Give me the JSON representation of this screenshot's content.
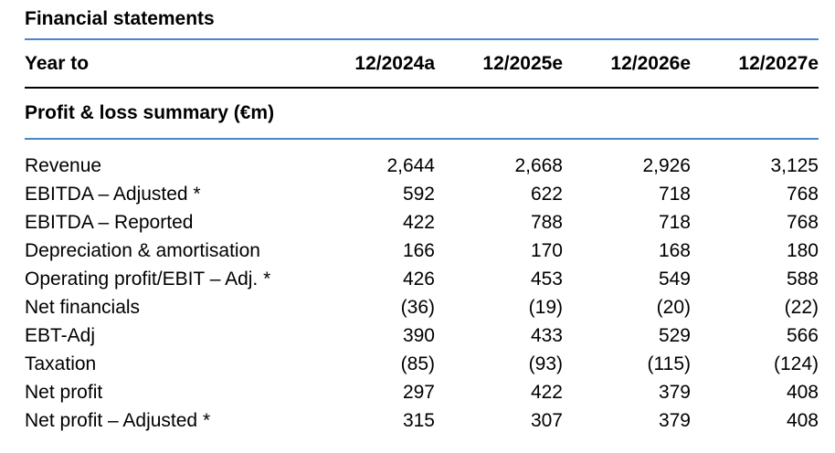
{
  "title": "Financial statements",
  "colors": {
    "accent_blue": "#4a87c7",
    "rule_black": "#000000",
    "text": "#000000",
    "background": "#ffffff"
  },
  "table": {
    "year_to_label": "Year to",
    "columns": [
      "12/2024a",
      "12/2025e",
      "12/2026e",
      "12/2027e"
    ],
    "section_header": "Profit & loss summary (€m)",
    "rows": [
      {
        "label": "Revenue",
        "values": [
          "2,644",
          "2,668",
          "2,926",
          "3,125"
        ]
      },
      {
        "label": "EBITDA – Adjusted *",
        "values": [
          "592",
          "622",
          "718",
          "768"
        ]
      },
      {
        "label": "EBITDA – Reported",
        "values": [
          "422",
          "788",
          "718",
          "768"
        ]
      },
      {
        "label": "Depreciation & amortisation",
        "values": [
          "166",
          "170",
          "168",
          "180"
        ]
      },
      {
        "label": "Operating profit/EBIT – Adj. *",
        "values": [
          "426",
          "453",
          "549",
          "588"
        ]
      },
      {
        "label": "Net financials",
        "values": [
          "(36)",
          "(19)",
          "(20)",
          "(22)"
        ]
      },
      {
        "label": "EBT-Adj",
        "values": [
          "390",
          "433",
          "529",
          "566"
        ]
      },
      {
        "label": "Taxation",
        "values": [
          "(85)",
          "(93)",
          "(115)",
          "(124)"
        ]
      },
      {
        "label": "Net profit",
        "values": [
          "297",
          "422",
          "379",
          "408"
        ]
      },
      {
        "label": "Net profit – Adjusted *",
        "values": [
          "315",
          "307",
          "379",
          "408"
        ]
      }
    ]
  }
}
